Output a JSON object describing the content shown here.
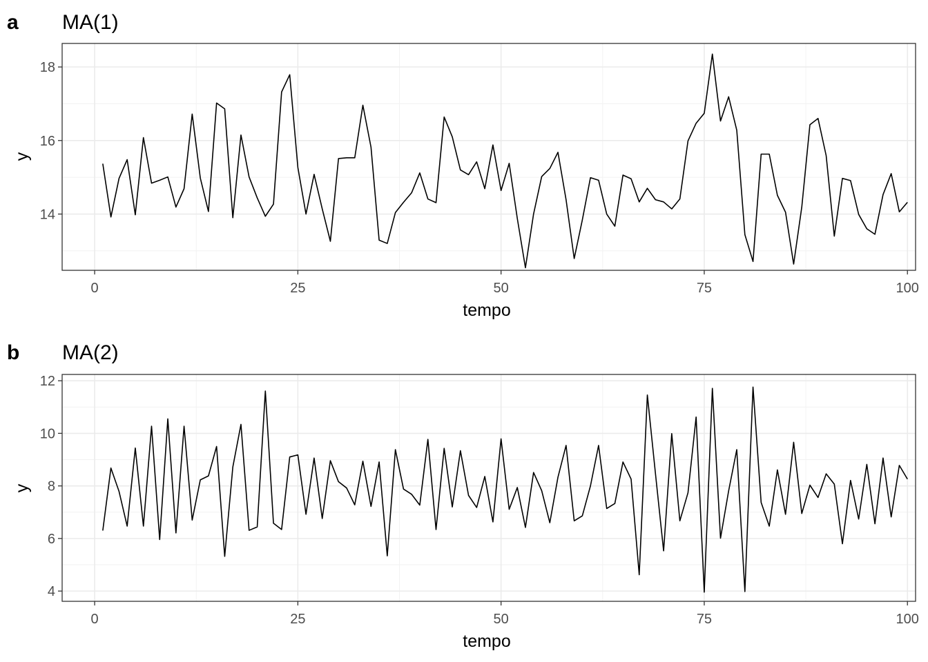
{
  "chart_data": [
    {
      "tag": "a",
      "type": "line",
      "title": "MA(1)",
      "xlabel": "tempo",
      "ylabel": "y",
      "xlim": [
        -4,
        101
      ],
      "ylim": [
        12.47,
        18.64
      ],
      "xticks": [
        0,
        25,
        50,
        75,
        100
      ],
      "yticks": [
        14,
        16,
        18
      ],
      "grid": true,
      "series": [
        {
          "x": [
            1,
            2,
            3,
            4,
            5,
            6,
            7,
            8,
            9,
            10,
            11,
            12,
            13,
            14,
            15,
            16,
            17,
            18,
            19,
            20,
            21,
            22,
            23,
            24,
            25,
            26,
            27,
            28,
            29,
            30,
            31,
            32,
            33,
            34,
            35,
            36,
            37,
            38,
            39,
            40,
            41,
            42,
            43,
            44,
            45,
            46,
            47,
            48,
            49,
            50,
            51,
            52,
            53,
            54,
            55,
            56,
            57,
            58,
            59,
            60,
            61,
            62,
            63,
            64,
            65,
            66,
            67,
            68,
            69,
            70,
            71,
            72,
            73,
            74,
            75,
            76,
            77,
            78,
            79,
            80,
            81,
            82,
            83,
            84,
            85,
            86,
            87,
            88,
            89,
            90,
            91,
            92,
            93,
            94,
            95,
            96,
            97,
            98,
            99,
            100
          ],
          "values": [
            15.37,
            13.92,
            14.97,
            15.48,
            13.98,
            16.08,
            14.84,
            14.92,
            15.01,
            14.19,
            14.69,
            16.72,
            14.98,
            14.07,
            17.02,
            16.86,
            13.9,
            16.15,
            15.01,
            14.44,
            13.94,
            14.27,
            17.32,
            17.79,
            15.27,
            14.0,
            15.08,
            14.14,
            13.26,
            15.51,
            15.53,
            15.53,
            16.96,
            15.82,
            13.29,
            13.2,
            14.04,
            14.32,
            14.58,
            15.12,
            14.41,
            14.31,
            16.64,
            16.1,
            15.2,
            15.07,
            15.42,
            14.69,
            15.88,
            14.64,
            15.38,
            13.88,
            12.54,
            14.0,
            15.02,
            15.24,
            15.68,
            14.39,
            12.79,
            13.84,
            14.99,
            14.92,
            14.0,
            13.67,
            15.06,
            14.96,
            14.33,
            14.7,
            14.39,
            14.33,
            14.14,
            14.41,
            15.99,
            16.47,
            16.74,
            18.35,
            16.53,
            17.19,
            16.28,
            13.44,
            12.71,
            15.63,
            15.63,
            14.51,
            14.05,
            12.64,
            14.19,
            16.43,
            16.6,
            15.59,
            13.4,
            14.97,
            14.91,
            13.99,
            13.6,
            13.45,
            14.53,
            15.1,
            14.06,
            14.32
          ]
        }
      ]
    },
    {
      "tag": "b",
      "type": "line",
      "title": "MA(2)",
      "xlabel": "tempo",
      "ylabel": "y",
      "xlim": [
        -4,
        101
      ],
      "ylim": [
        3.61,
        12.24
      ],
      "xticks": [
        0,
        25,
        50,
        75,
        100
      ],
      "yticks": [
        4,
        6,
        8,
        10,
        12
      ],
      "grid": true,
      "series": [
        {
          "x": [
            1,
            2,
            3,
            4,
            5,
            6,
            7,
            8,
            9,
            10,
            11,
            12,
            13,
            14,
            15,
            16,
            17,
            18,
            19,
            20,
            21,
            22,
            23,
            24,
            25,
            26,
            27,
            28,
            29,
            30,
            31,
            32,
            33,
            34,
            35,
            36,
            37,
            38,
            39,
            40,
            41,
            42,
            43,
            44,
            45,
            46,
            47,
            48,
            49,
            50,
            51,
            52,
            53,
            54,
            55,
            56,
            57,
            58,
            59,
            60,
            61,
            62,
            63,
            64,
            65,
            66,
            67,
            68,
            69,
            70,
            71,
            72,
            73,
            74,
            75,
            76,
            77,
            78,
            79,
            80,
            81,
            82,
            83,
            84,
            85,
            86,
            87,
            88,
            89,
            90,
            91,
            92,
            93,
            94,
            95,
            96,
            97,
            98,
            99,
            100
          ],
          "values": [
            6.3,
            8.68,
            7.79,
            6.47,
            9.44,
            6.47,
            10.27,
            5.96,
            10.55,
            6.21,
            10.27,
            6.7,
            8.23,
            8.38,
            9.5,
            5.32,
            8.72,
            10.34,
            6.31,
            6.44,
            11.61,
            6.58,
            6.34,
            9.1,
            9.18,
            6.92,
            9.06,
            6.76,
            8.96,
            8.16,
            7.92,
            7.28,
            8.94,
            7.22,
            8.91,
            5.34,
            9.38,
            7.88,
            7.68,
            7.27,
            9.77,
            6.34,
            9.43,
            7.2,
            9.34,
            7.64,
            7.18,
            8.36,
            6.63,
            9.79,
            7.11,
            7.94,
            6.42,
            8.51,
            7.82,
            6.6,
            8.33,
            9.54,
            6.67,
            6.86,
            8.0,
            9.54,
            7.14,
            7.33,
            8.91,
            8.26,
            4.62,
            11.46,
            8.46,
            5.53,
            9.99,
            6.67,
            7.74,
            10.62,
            3.96,
            11.71,
            6.01,
            7.81,
            9.38,
            3.98,
            11.76,
            7.37,
            6.47,
            8.61,
            6.92,
            9.66,
            6.95,
            8.03,
            7.56,
            8.46,
            8.07,
            5.8,
            8.21,
            6.74,
            8.82,
            6.56,
            9.06,
            6.82,
            8.78,
            8.26
          ]
        }
      ]
    }
  ]
}
